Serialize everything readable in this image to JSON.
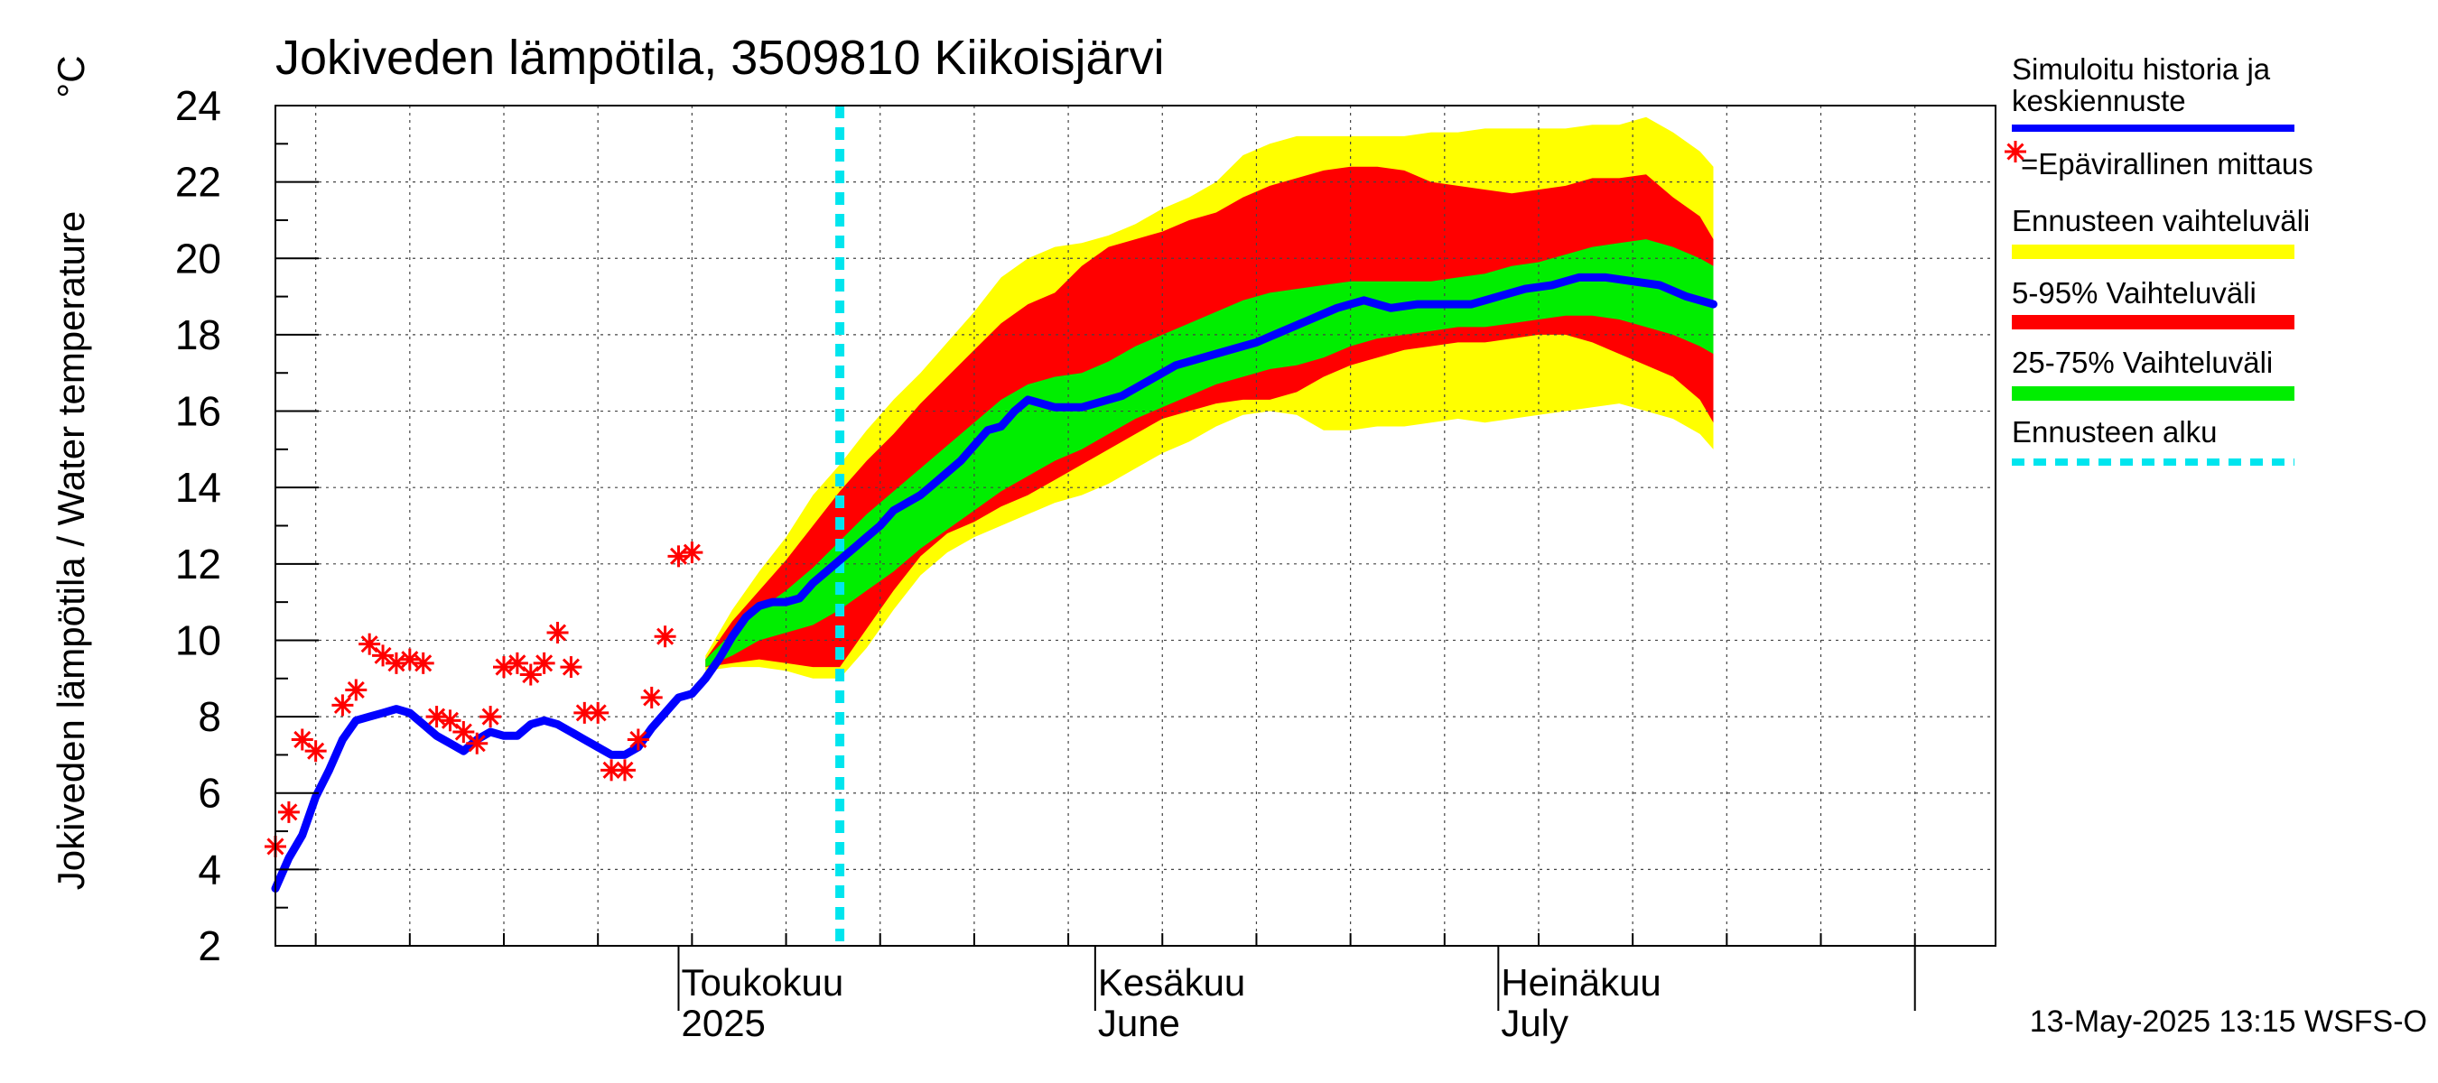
{
  "chart_data": {
    "type": "area",
    "title": "Jokiveden lämpötila, 3509810 Kiikoisjärvi",
    "ylabel": "Jokiveden lämpötila / Water temperature",
    "yunit": "°C",
    "ylim": [
      2,
      24
    ],
    "yticks": [
      2,
      4,
      6,
      8,
      10,
      12,
      14,
      16,
      18,
      20,
      22,
      24
    ],
    "xlim": [
      "2025-04-01",
      "2025-08-07"
    ],
    "grid": true,
    "legend_position": "right",
    "forecast_start": "2025-05-13",
    "month_labels": [
      {
        "date": "2025-05-01",
        "line1": "Toukokuu",
        "line2": "2025"
      },
      {
        "date": "2025-06-01",
        "line1": "Kesäkuu",
        "line2": "June"
      },
      {
        "date": "2025-07-01",
        "line1": "Heinäkuu",
        "line2": "July"
      }
    ],
    "timestamp": "13-May-2025 13:15 WSFS-O",
    "legend": [
      {
        "label": "Simuloitu historia ja",
        "label2": "keskiennuste",
        "color": "#0000ff",
        "kind": "line"
      },
      {
        "label": "=Epävirallinen mittaus",
        "color": "#ff0000",
        "kind": "marker"
      },
      {
        "label": "Ennusteen vaihteluväli",
        "color": "#ffff00",
        "kind": "band"
      },
      {
        "label": "5-95% Vaihteluväli",
        "color": "#ff0000",
        "kind": "band"
      },
      {
        "label": "25-75% Vaihteluväli",
        "color": "#00ee00",
        "kind": "band"
      },
      {
        "label": "Ennusteen alku",
        "color": "#00e5ee",
        "kind": "dashed"
      }
    ],
    "colors": {
      "median": "#0000ff",
      "observed": "#ff0000",
      "range_full": "#ffff00",
      "range_5_95": "#ff0000",
      "range_25_75": "#00ee00",
      "forecast_start": "#00e5ee"
    },
    "observed": [
      {
        "date": "2025-04-01",
        "value": 4.6
      },
      {
        "date": "2025-04-02",
        "value": 5.5
      },
      {
        "date": "2025-04-03",
        "value": 7.4
      },
      {
        "date": "2025-04-04",
        "value": 7.1
      },
      {
        "date": "2025-04-06",
        "value": 8.3
      },
      {
        "date": "2025-04-07",
        "value": 8.7
      },
      {
        "date": "2025-04-08",
        "value": 9.9
      },
      {
        "date": "2025-04-09",
        "value": 9.6
      },
      {
        "date": "2025-04-10",
        "value": 9.4
      },
      {
        "date": "2025-04-11",
        "value": 9.5
      },
      {
        "date": "2025-04-12",
        "value": 9.4
      },
      {
        "date": "2025-04-13",
        "value": 8.0
      },
      {
        "date": "2025-04-14",
        "value": 7.9
      },
      {
        "date": "2025-04-15",
        "value": 7.6
      },
      {
        "date": "2025-04-16",
        "value": 7.3
      },
      {
        "date": "2025-04-17",
        "value": 8.0
      },
      {
        "date": "2025-04-18",
        "value": 9.3
      },
      {
        "date": "2025-04-19",
        "value": 9.4
      },
      {
        "date": "2025-04-20",
        "value": 9.1
      },
      {
        "date": "2025-04-21",
        "value": 9.4
      },
      {
        "date": "2025-04-22",
        "value": 10.2
      },
      {
        "date": "2025-04-23",
        "value": 9.3
      },
      {
        "date": "2025-04-24",
        "value": 8.1
      },
      {
        "date": "2025-04-25",
        "value": 8.1
      },
      {
        "date": "2025-04-26",
        "value": 6.6
      },
      {
        "date": "2025-04-27",
        "value": 6.6
      },
      {
        "date": "2025-04-28",
        "value": 7.4
      },
      {
        "date": "2025-04-29",
        "value": 8.5
      },
      {
        "date": "2025-04-30",
        "value": 10.1
      },
      {
        "date": "2025-05-01",
        "value": 12.2
      },
      {
        "date": "2025-05-02",
        "value": 12.3
      }
    ],
    "median": [
      {
        "date": "2025-04-01",
        "value": 3.5
      },
      {
        "date": "2025-04-02",
        "value": 4.3
      },
      {
        "date": "2025-04-03",
        "value": 4.9
      },
      {
        "date": "2025-04-04",
        "value": 5.9
      },
      {
        "date": "2025-04-05",
        "value": 6.6
      },
      {
        "date": "2025-04-06",
        "value": 7.4
      },
      {
        "date": "2025-04-07",
        "value": 7.9
      },
      {
        "date": "2025-04-08",
        "value": 8.0
      },
      {
        "date": "2025-04-09",
        "value": 8.1
      },
      {
        "date": "2025-04-10",
        "value": 8.2
      },
      {
        "date": "2025-04-11",
        "value": 8.1
      },
      {
        "date": "2025-04-12",
        "value": 7.8
      },
      {
        "date": "2025-04-13",
        "value": 7.5
      },
      {
        "date": "2025-04-14",
        "value": 7.3
      },
      {
        "date": "2025-04-15",
        "value": 7.1
      },
      {
        "date": "2025-04-16",
        "value": 7.4
      },
      {
        "date": "2025-04-17",
        "value": 7.6
      },
      {
        "date": "2025-04-18",
        "value": 7.5
      },
      {
        "date": "2025-04-19",
        "value": 7.5
      },
      {
        "date": "2025-04-20",
        "value": 7.8
      },
      {
        "date": "2025-04-21",
        "value": 7.9
      },
      {
        "date": "2025-04-22",
        "value": 7.8
      },
      {
        "date": "2025-04-23",
        "value": 7.6
      },
      {
        "date": "2025-04-24",
        "value": 7.4
      },
      {
        "date": "2025-04-25",
        "value": 7.2
      },
      {
        "date": "2025-04-26",
        "value": 7.0
      },
      {
        "date": "2025-04-27",
        "value": 7.0
      },
      {
        "date": "2025-04-28",
        "value": 7.2
      },
      {
        "date": "2025-04-29",
        "value": 7.7
      },
      {
        "date": "2025-04-30",
        "value": 8.1
      },
      {
        "date": "2025-05-01",
        "value": 8.5
      },
      {
        "date": "2025-05-02",
        "value": 8.6
      },
      {
        "date": "2025-05-03",
        "value": 9.0
      },
      {
        "date": "2025-05-04",
        "value": 9.5
      },
      {
        "date": "2025-05-05",
        "value": 10.1
      },
      {
        "date": "2025-05-06",
        "value": 10.6
      },
      {
        "date": "2025-05-07",
        "value": 10.9
      },
      {
        "date": "2025-05-08",
        "value": 11.0
      },
      {
        "date": "2025-05-09",
        "value": 11.0
      },
      {
        "date": "2025-05-10",
        "value": 11.1
      },
      {
        "date": "2025-05-11",
        "value": 11.5
      },
      {
        "date": "2025-05-12",
        "value": 11.8
      },
      {
        "date": "2025-05-13",
        "value": 12.1
      },
      {
        "date": "2025-05-14",
        "value": 12.4
      },
      {
        "date": "2025-05-15",
        "value": 12.7
      },
      {
        "date": "2025-05-16",
        "value": 13.0
      },
      {
        "date": "2025-05-17",
        "value": 13.4
      },
      {
        "date": "2025-05-18",
        "value": 13.6
      },
      {
        "date": "2025-05-19",
        "value": 13.8
      },
      {
        "date": "2025-05-20",
        "value": 14.1
      },
      {
        "date": "2025-05-21",
        "value": 14.4
      },
      {
        "date": "2025-05-22",
        "value": 14.7
      },
      {
        "date": "2025-05-23",
        "value": 15.1
      },
      {
        "date": "2025-05-24",
        "value": 15.5
      },
      {
        "date": "2025-05-25",
        "value": 15.6
      },
      {
        "date": "2025-05-26",
        "value": 16.0
      },
      {
        "date": "2025-05-27",
        "value": 16.3
      },
      {
        "date": "2025-05-28",
        "value": 16.2
      },
      {
        "date": "2025-05-29",
        "value": 16.1
      },
      {
        "date": "2025-05-30",
        "value": 16.1
      },
      {
        "date": "2025-05-31",
        "value": 16.1
      },
      {
        "date": "2025-06-01",
        "value": 16.2
      },
      {
        "date": "2025-06-03",
        "value": 16.4
      },
      {
        "date": "2025-06-05",
        "value": 16.8
      },
      {
        "date": "2025-06-07",
        "value": 17.2
      },
      {
        "date": "2025-06-09",
        "value": 17.4
      },
      {
        "date": "2025-06-11",
        "value": 17.6
      },
      {
        "date": "2025-06-13",
        "value": 17.8
      },
      {
        "date": "2025-06-15",
        "value": 18.1
      },
      {
        "date": "2025-06-17",
        "value": 18.4
      },
      {
        "date": "2025-06-19",
        "value": 18.7
      },
      {
        "date": "2025-06-21",
        "value": 18.9
      },
      {
        "date": "2025-06-23",
        "value": 18.7
      },
      {
        "date": "2025-06-25",
        "value": 18.8
      },
      {
        "date": "2025-06-27",
        "value": 18.8
      },
      {
        "date": "2025-06-29",
        "value": 18.8
      },
      {
        "date": "2025-07-01",
        "value": 19.0
      },
      {
        "date": "2025-07-03",
        "value": 19.2
      },
      {
        "date": "2025-07-05",
        "value": 19.3
      },
      {
        "date": "2025-07-07",
        "value": 19.5
      },
      {
        "date": "2025-07-09",
        "value": 19.5
      },
      {
        "date": "2025-07-11",
        "value": 19.4
      },
      {
        "date": "2025-07-13",
        "value": 19.3
      },
      {
        "date": "2025-07-15",
        "value": 19.0
      },
      {
        "date": "2025-07-16",
        "value": 18.9
      },
      {
        "date": "2025-07-17",
        "value": 18.8
      }
    ],
    "bands": {
      "full": {
        "x": [
          "2025-05-03",
          "2025-05-05",
          "2025-05-07",
          "2025-05-09",
          "2025-05-11",
          "2025-05-13",
          "2025-05-15",
          "2025-05-17",
          "2025-05-19",
          "2025-05-21",
          "2025-05-23",
          "2025-05-25",
          "2025-05-27",
          "2025-05-29",
          "2025-05-31",
          "2025-06-02",
          "2025-06-04",
          "2025-06-06",
          "2025-06-08",
          "2025-06-10",
          "2025-06-12",
          "2025-06-14",
          "2025-06-16",
          "2025-06-18",
          "2025-06-20",
          "2025-06-22",
          "2025-06-24",
          "2025-06-26",
          "2025-06-28",
          "2025-06-30",
          "2025-07-02",
          "2025-07-04",
          "2025-07-06",
          "2025-07-08",
          "2025-07-10",
          "2025-07-12",
          "2025-07-14",
          "2025-07-16",
          "2025-07-17"
        ],
        "low": [
          9.2,
          9.3,
          9.3,
          9.2,
          9.0,
          9.0,
          9.8,
          10.8,
          11.7,
          12.3,
          12.7,
          13.0,
          13.3,
          13.6,
          13.8,
          14.1,
          14.5,
          14.9,
          15.2,
          15.6,
          15.9,
          16.0,
          15.9,
          15.5,
          15.5,
          15.6,
          15.6,
          15.7,
          15.8,
          15.7,
          15.8,
          15.9,
          16.0,
          16.1,
          16.2,
          16.0,
          15.8,
          15.4,
          15.0
        ],
        "high": [
          9.6,
          10.8,
          11.8,
          12.7,
          13.8,
          14.6,
          15.5,
          16.3,
          17.0,
          17.8,
          18.6,
          19.5,
          20.0,
          20.3,
          20.4,
          20.6,
          20.9,
          21.3,
          21.6,
          22.0,
          22.7,
          23.0,
          23.2,
          23.2,
          23.2,
          23.2,
          23.2,
          23.3,
          23.3,
          23.4,
          23.4,
          23.4,
          23.4,
          23.5,
          23.5,
          23.7,
          23.3,
          22.8,
          22.4
        ]
      },
      "p5_95": {
        "x": [
          "2025-05-03",
          "2025-05-05",
          "2025-05-07",
          "2025-05-09",
          "2025-05-11",
          "2025-05-13",
          "2025-05-15",
          "2025-05-17",
          "2025-05-19",
          "2025-05-21",
          "2025-05-23",
          "2025-05-25",
          "2025-05-27",
          "2025-05-29",
          "2025-05-31",
          "2025-06-02",
          "2025-06-04",
          "2025-06-06",
          "2025-06-08",
          "2025-06-10",
          "2025-06-12",
          "2025-06-14",
          "2025-06-16",
          "2025-06-18",
          "2025-06-20",
          "2025-06-22",
          "2025-06-24",
          "2025-06-26",
          "2025-06-28",
          "2025-06-30",
          "2025-07-02",
          "2025-07-04",
          "2025-07-06",
          "2025-07-08",
          "2025-07-10",
          "2025-07-12",
          "2025-07-14",
          "2025-07-16",
          "2025-07-17"
        ],
        "low": [
          9.3,
          9.4,
          9.5,
          9.4,
          9.3,
          9.3,
          10.3,
          11.3,
          12.2,
          12.8,
          13.1,
          13.5,
          13.8,
          14.2,
          14.6,
          15.0,
          15.4,
          15.8,
          16.0,
          16.2,
          16.3,
          16.3,
          16.5,
          16.9,
          17.2,
          17.4,
          17.6,
          17.7,
          17.8,
          17.8,
          17.9,
          18.0,
          18.0,
          17.8,
          17.5,
          17.2,
          16.9,
          16.3,
          15.7
        ],
        "high": [
          9.5,
          10.5,
          11.3,
          12.1,
          13.0,
          13.9,
          14.7,
          15.4,
          16.2,
          16.9,
          17.6,
          18.3,
          18.8,
          19.1,
          19.8,
          20.3,
          20.5,
          20.7,
          21.0,
          21.2,
          21.6,
          21.9,
          22.1,
          22.3,
          22.4,
          22.4,
          22.3,
          22.0,
          21.9,
          21.8,
          21.7,
          21.8,
          21.9,
          22.1,
          22.1,
          22.2,
          21.6,
          21.1,
          20.5
        ]
      },
      "p25_75": {
        "x": [
          "2025-05-03",
          "2025-05-05",
          "2025-05-07",
          "2025-05-09",
          "2025-05-11",
          "2025-05-13",
          "2025-05-15",
          "2025-05-17",
          "2025-05-19",
          "2025-05-21",
          "2025-05-23",
          "2025-05-25",
          "2025-05-27",
          "2025-05-29",
          "2025-05-31",
          "2025-06-02",
          "2025-06-04",
          "2025-06-06",
          "2025-06-08",
          "2025-06-10",
          "2025-06-12",
          "2025-06-14",
          "2025-06-16",
          "2025-06-18",
          "2025-06-20",
          "2025-06-22",
          "2025-06-24",
          "2025-06-26",
          "2025-06-28",
          "2025-06-30",
          "2025-07-02",
          "2025-07-04",
          "2025-07-06",
          "2025-07-08",
          "2025-07-10",
          "2025-07-12",
          "2025-07-14",
          "2025-07-16",
          "2025-07-17"
        ],
        "low": [
          9.3,
          9.6,
          10.0,
          10.2,
          10.4,
          10.8,
          11.3,
          11.8,
          12.4,
          12.9,
          13.4,
          13.9,
          14.3,
          14.7,
          15.0,
          15.4,
          15.8,
          16.1,
          16.4,
          16.7,
          16.9,
          17.1,
          17.2,
          17.4,
          17.7,
          17.9,
          18.0,
          18.1,
          18.2,
          18.2,
          18.3,
          18.4,
          18.5,
          18.5,
          18.4,
          18.2,
          18.0,
          17.7,
          17.5
        ],
        "high": [
          9.5,
          10.2,
          10.8,
          11.3,
          11.9,
          12.6,
          13.3,
          13.9,
          14.5,
          15.1,
          15.7,
          16.3,
          16.7,
          16.9,
          17.0,
          17.3,
          17.7,
          18.0,
          18.3,
          18.6,
          18.9,
          19.1,
          19.2,
          19.3,
          19.4,
          19.4,
          19.4,
          19.4,
          19.5,
          19.6,
          19.8,
          19.9,
          20.1,
          20.3,
          20.4,
          20.5,
          20.3,
          20.0,
          19.8
        ]
      }
    }
  }
}
